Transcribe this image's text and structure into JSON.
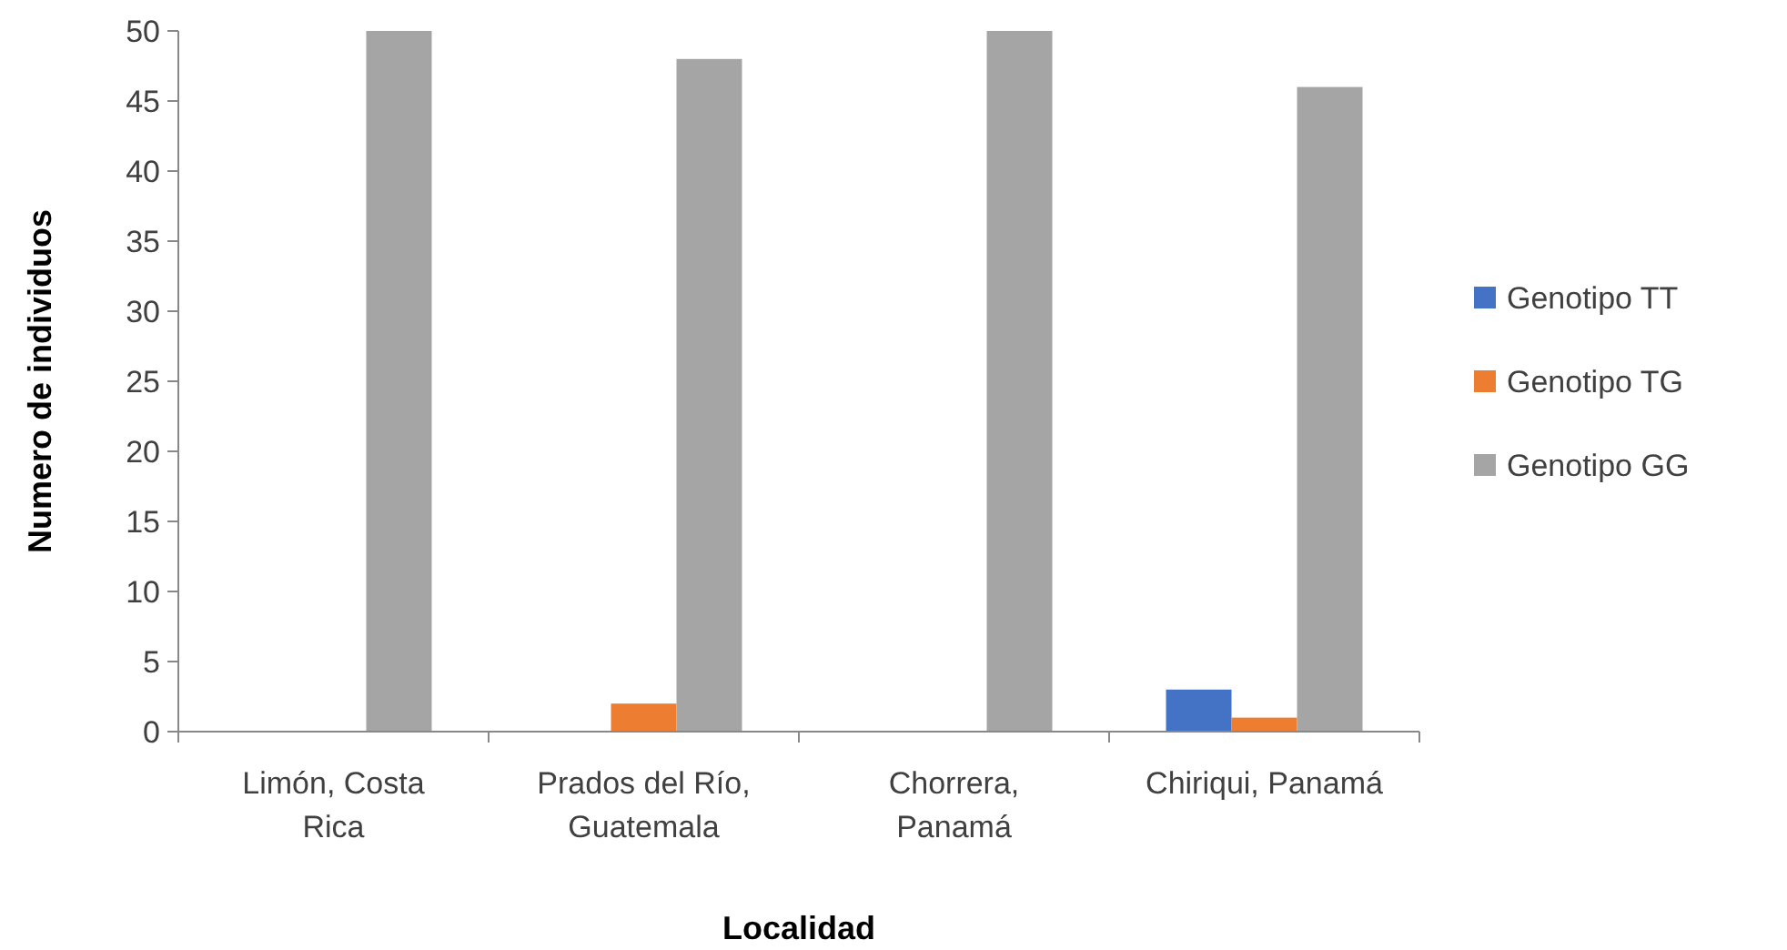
{
  "chart_data": {
    "type": "bar",
    "xlabel": "Localidad",
    "ylabel": "Numero de individuos",
    "categories": [
      "Limón, Costa Rica",
      "Prados del Río, Guatemala",
      "Chorrera, Panamá",
      "Chiriqui, Panamá"
    ],
    "series": [
      {
        "name": "Genotipo TT",
        "color": "#4472c4",
        "values": [
          0,
          0,
          0,
          3
        ]
      },
      {
        "name": "Genotipo TG",
        "color": "#ed7d31",
        "values": [
          0,
          2,
          0,
          1
        ]
      },
      {
        "name": "Genotipo GG",
        "color": "#a5a5a5",
        "values": [
          50,
          48,
          50,
          46
        ]
      }
    ],
    "ylim": [
      0,
      50
    ],
    "yticks": [
      0,
      5,
      10,
      15,
      20,
      25,
      30,
      35,
      40,
      45,
      50
    ],
    "grid": false,
    "legend": "right"
  }
}
